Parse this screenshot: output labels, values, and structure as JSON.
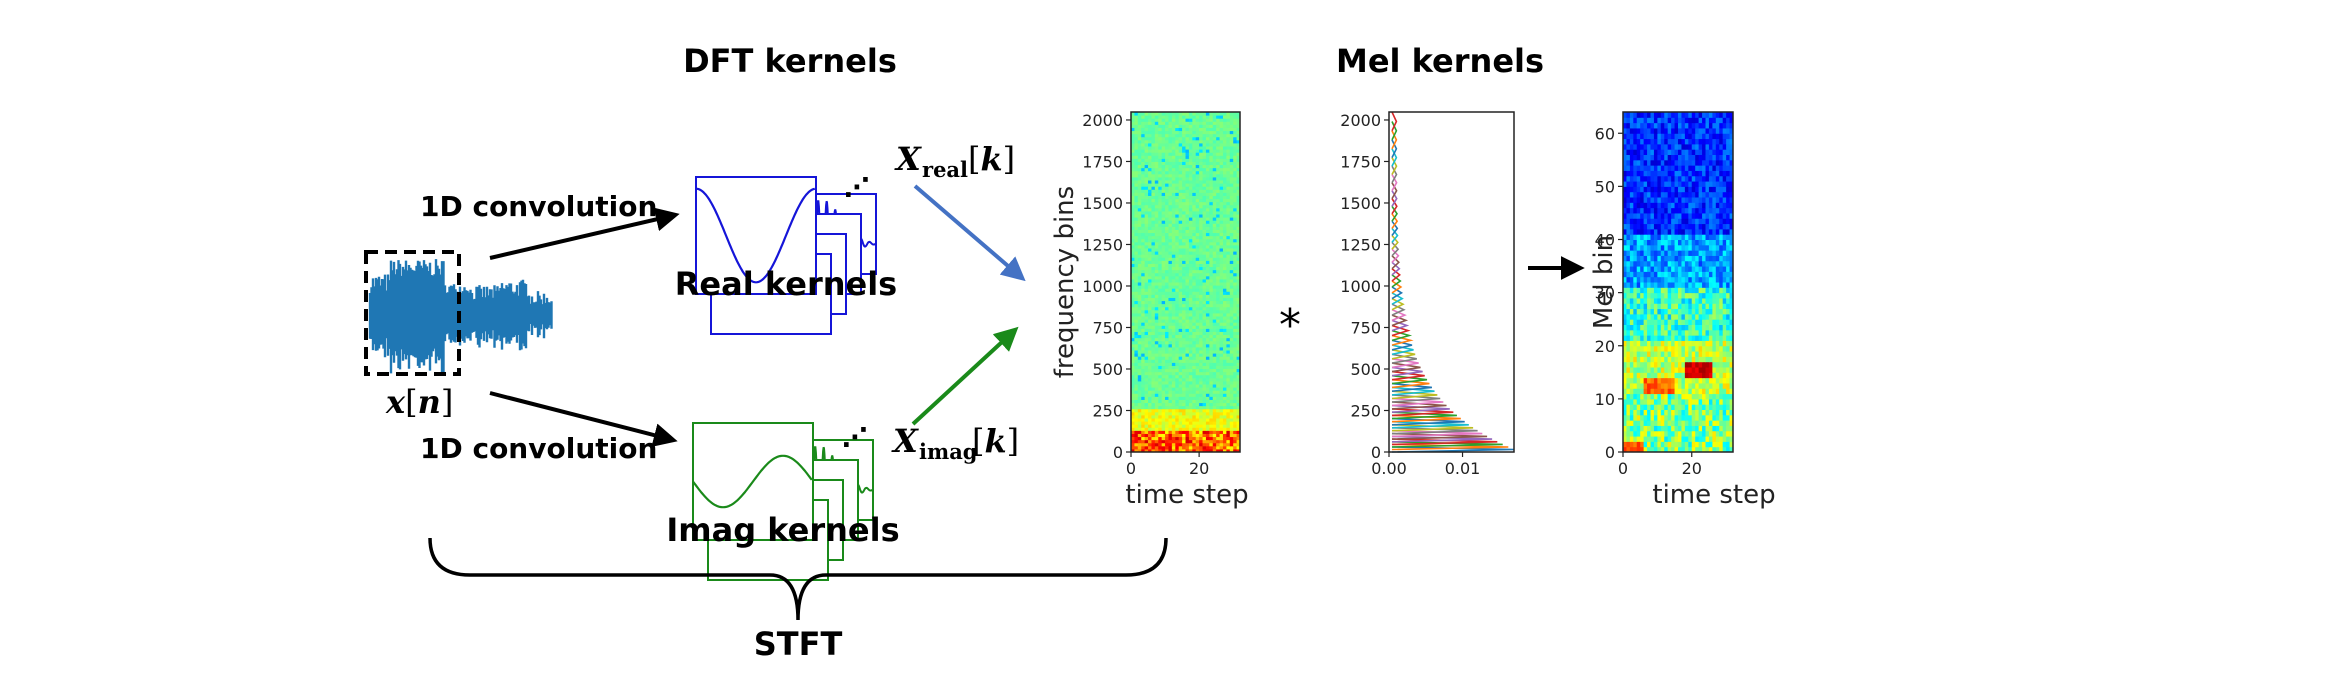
{
  "labels": {
    "dft_kernels": "DFT kernels",
    "mel_kernels": "Mel kernels",
    "real_kernels": "Real kernels",
    "imag_kernels": "Imag kernels",
    "conv_top": "1D convolution",
    "conv_bottom": "1D convolution",
    "input_signal": "x[n]",
    "input_x": "x",
    "input_n": "n",
    "x_real_main": "X",
    "x_real_sub": "real",
    "x_real_idx": "k",
    "x_imag_main": "X",
    "x_imag_sub": "imag",
    "x_imag_idx": "k",
    "convolution_operator": "*",
    "stft": "STFT",
    "ellipsis": "⋰"
  },
  "colors": {
    "signal": "#1f77b4",
    "real_kernel": "#1515d8",
    "imag_kernel": "#1a8a1a",
    "arrow_real": "#4472c4",
    "arrow_imag": "#1a8a1a",
    "black": "#000000"
  },
  "chart_data": [
    {
      "id": "spectrogram",
      "type": "heatmap",
      "xlabel": "time step",
      "ylabel": "frequency bins",
      "xticks": [
        "0",
        "20"
      ],
      "yticks": [
        "0",
        "250",
        "500",
        "750",
        "1000",
        "1250",
        "1500",
        "1750",
        "2000"
      ],
      "xlim": [
        0,
        32
      ],
      "ylim": [
        0,
        2048
      ],
      "colormap": "jet"
    },
    {
      "id": "mel_filterbank",
      "type": "line",
      "xticks": [
        "0.00",
        "0.01"
      ],
      "yticks": [
        "0",
        "250",
        "500",
        "750",
        "1000",
        "1250",
        "1500",
        "1750",
        "2000"
      ],
      "xlim": [
        0,
        0.017
      ],
      "ylim": [
        0,
        2048
      ],
      "series_count": 64
    },
    {
      "id": "mel_spectrogram",
      "type": "heatmap",
      "xlabel": "time step",
      "ylabel": "Mel bin",
      "xticks": [
        "0",
        "20"
      ],
      "yticks": [
        "0",
        "10",
        "20",
        "30",
        "40",
        "50",
        "60"
      ],
      "xlim": [
        0,
        32
      ],
      "ylim": [
        0,
        64
      ],
      "colormap": "jet"
    }
  ]
}
